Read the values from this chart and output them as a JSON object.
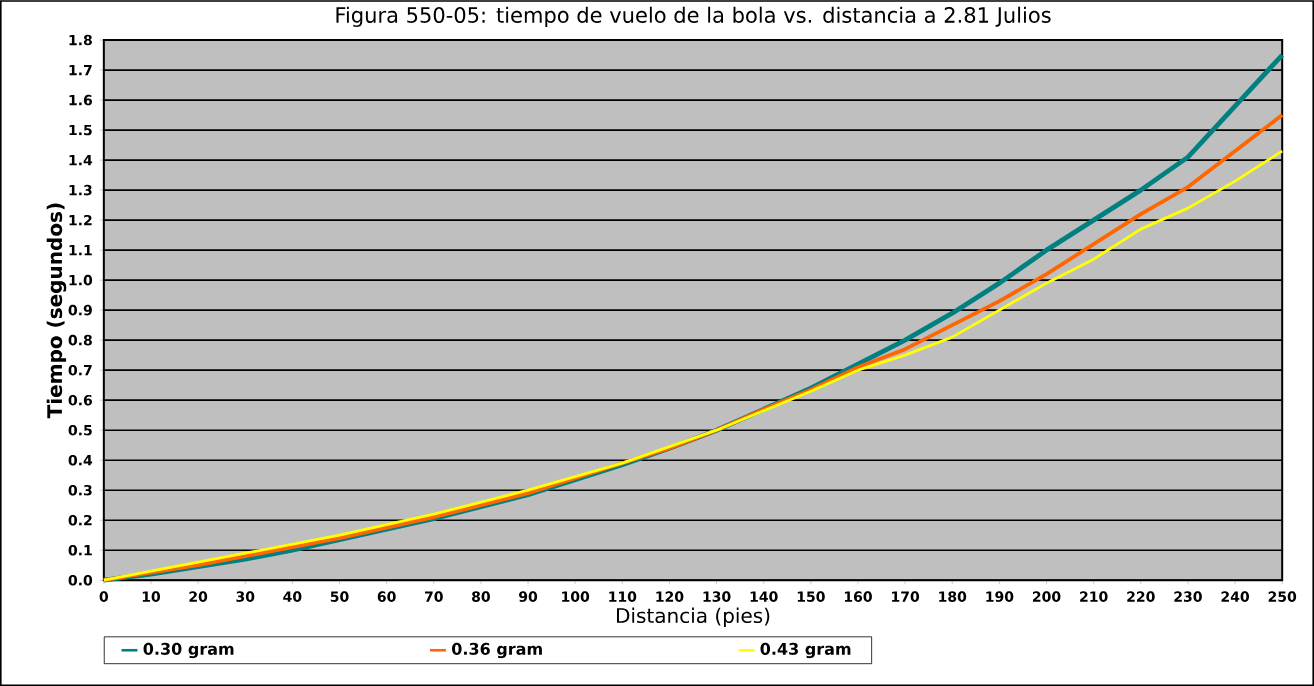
{
  "chart_data": {
    "type": "line",
    "title": "Figura 550-05: tiempo de vuelo de la bola vs. distancia a 2.81 Julios",
    "xlabel": "Distancia (pies)",
    "ylabel": "Tiempo (segundos)",
    "x": [
      0,
      10,
      20,
      30,
      40,
      50,
      60,
      70,
      80,
      90,
      100,
      110,
      120,
      130,
      140,
      150,
      160,
      170,
      180,
      190,
      200,
      210,
      220,
      230,
      240,
      250
    ],
    "series": [
      {
        "name": "0.30 gram",
        "color": "#008080",
        "values": [
          0,
          0.02,
          0.045,
          0.07,
          0.1,
          0.135,
          0.17,
          0.205,
          0.245,
          0.285,
          0.335,
          0.385,
          0.44,
          0.5,
          0.57,
          0.64,
          0.72,
          0.8,
          0.89,
          0.99,
          1.1,
          1.2,
          1.3,
          1.41,
          1.58,
          1.75
        ]
      },
      {
        "name": "0.36 gram",
        "color": "#ff6600",
        "values": [
          0,
          0.025,
          0.05,
          0.08,
          0.11,
          0.14,
          0.175,
          0.21,
          0.25,
          0.29,
          0.34,
          0.39,
          0.44,
          0.5,
          0.57,
          0.635,
          0.71,
          0.77,
          0.85,
          0.93,
          1.02,
          1.12,
          1.22,
          1.31,
          1.43,
          1.55
        ]
      },
      {
        "name": "0.43 gram",
        "color": "#ffff00",
        "values": [
          0,
          0.03,
          0.06,
          0.09,
          0.12,
          0.15,
          0.185,
          0.22,
          0.26,
          0.3,
          0.345,
          0.39,
          0.445,
          0.5,
          0.565,
          0.63,
          0.7,
          0.75,
          0.81,
          0.9,
          0.99,
          1.07,
          1.17,
          1.24,
          1.33,
          1.43
        ]
      }
    ],
    "xlim": [
      0,
      250
    ],
    "xticks": [
      0,
      10,
      20,
      30,
      40,
      50,
      60,
      70,
      80,
      90,
      100,
      110,
      120,
      130,
      140,
      150,
      160,
      170,
      180,
      190,
      200,
      210,
      220,
      230,
      240,
      250
    ],
    "ylim": [
      0,
      1.8
    ],
    "yticks": [
      {
        "value": 0,
        "label": "0.0"
      },
      0.1,
      0.2,
      0.3,
      0.4,
      0.5,
      0.6,
      0.7,
      0.8,
      0.9,
      {
        "value": 1,
        "label": "1.0"
      },
      1.1,
      1.2,
      1.3,
      1.4,
      1.5,
      1.6,
      1.7,
      1.8
    ],
    "grid": "y",
    "legend": "bottom",
    "marker": "none",
    "line_style": "solid"
  }
}
